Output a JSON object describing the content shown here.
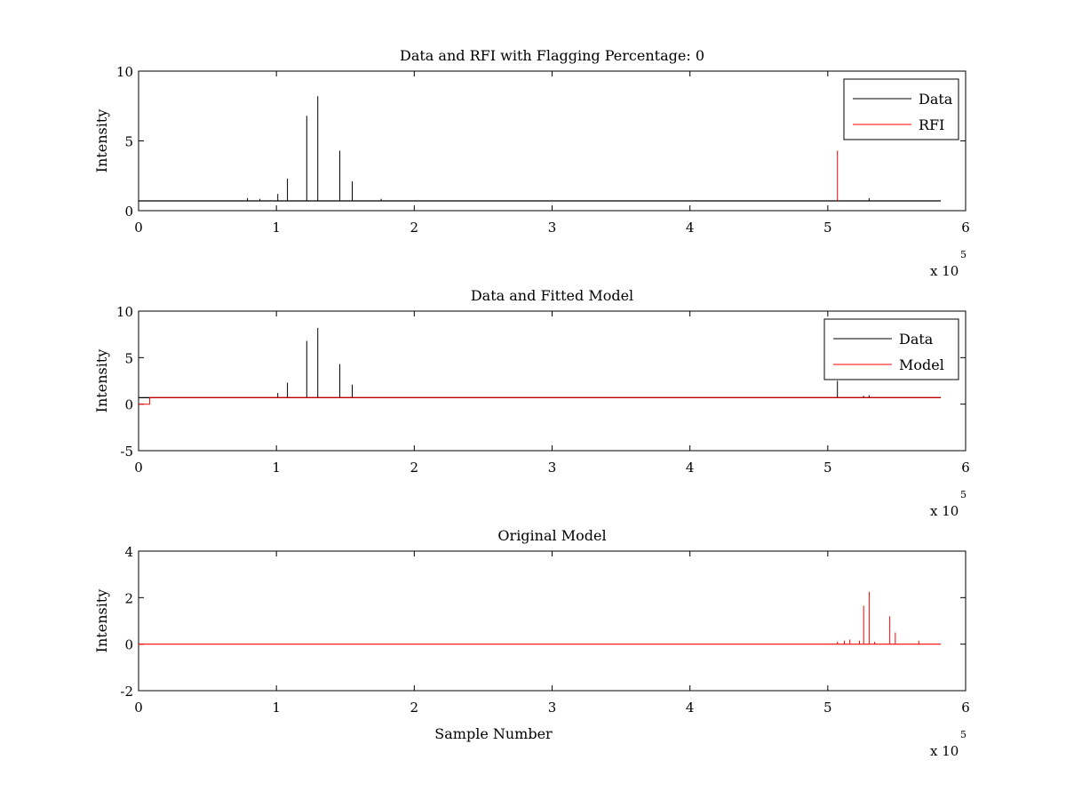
{
  "colors": {
    "data": "#000000",
    "rfi": "#ff0000",
    "model": "#ff0000",
    "frame": "#000000",
    "background": "#ffffff"
  },
  "chart_data": [
    {
      "type": "line",
      "title": "Data and RFI with Flagging Percentage: 0",
      "xlabel": "",
      "ylabel": "Intensity",
      "xlim": [
        0,
        600000
      ],
      "ylim": [
        0,
        10
      ],
      "xticks": [
        0,
        1,
        2,
        3,
        4,
        5,
        6
      ],
      "yticks": [
        0,
        5,
        10
      ],
      "x_multiplier": {
        "base": "x 10",
        "exponent": "5"
      },
      "grid": false,
      "legend": {
        "placement": "top-right",
        "entries": [
          "Data",
          "RFI"
        ]
      },
      "series": [
        {
          "name": "Data",
          "color": "#000000",
          "baseline": 0.7,
          "baseline_x": [
            0,
            582000
          ],
          "spikes": [
            {
              "x": 101000,
              "y": 1.2
            },
            {
              "x": 108000,
              "y": 2.3
            },
            {
              "x": 122000,
              "y": 6.8
            },
            {
              "x": 130000,
              "y": 8.2
            },
            {
              "x": 146000,
              "y": 4.3
            },
            {
              "x": 155000,
              "y": 2.1
            },
            {
              "x": 79000,
              "y": 0.9
            },
            {
              "x": 88000,
              "y": 0.85
            },
            {
              "x": 176000,
              "y": 0.85
            },
            {
              "x": 530000,
              "y": 0.9
            }
          ]
        },
        {
          "name": "RFI",
          "color": "#ff0000",
          "baseline": 0.7,
          "spikes": [
            {
              "x": 506000,
              "y": 0.7
            },
            {
              "x": 507000,
              "y": 4.3
            }
          ]
        }
      ]
    },
    {
      "type": "line",
      "title": "Data and Fitted Model",
      "xlabel": "",
      "ylabel": "Intensity",
      "xlim": [
        0,
        600000
      ],
      "ylim": [
        -5,
        10
      ],
      "xticks": [
        0,
        1,
        2,
        3,
        4,
        5,
        6
      ],
      "yticks": [
        -5,
        0,
        5,
        10
      ],
      "x_multiplier": {
        "base": "x 10",
        "exponent": "5"
      },
      "grid": false,
      "legend": {
        "placement": "top-right",
        "entries": [
          "Data",
          "Model"
        ]
      },
      "series": [
        {
          "name": "Data",
          "color": "#000000",
          "baseline": 0.7,
          "baseline_x": [
            0,
            582000
          ],
          "spikes": [
            {
              "x": 101000,
              "y": 1.2
            },
            {
              "x": 108000,
              "y": 2.3
            },
            {
              "x": 122000,
              "y": 6.8
            },
            {
              "x": 130000,
              "y": 8.2
            },
            {
              "x": 146000,
              "y": 4.3
            },
            {
              "x": 155000,
              "y": 2.1
            },
            {
              "x": 507000,
              "y": 2.5
            },
            {
              "x": 526000,
              "y": 0.9
            },
            {
              "x": 530000,
              "y": 0.95
            }
          ]
        },
        {
          "name": "Model",
          "color": "#ff0000",
          "points": [
            [
              0,
              0
            ],
            [
              8000,
              0
            ],
            [
              8000,
              0.7
            ],
            [
              582000,
              0.7
            ]
          ]
        }
      ]
    },
    {
      "type": "line",
      "title": "Original Model",
      "xlabel": "Sample Number",
      "ylabel": "Intensity",
      "xlim": [
        0,
        600000
      ],
      "ylim": [
        -2,
        4
      ],
      "xticks": [
        0,
        1,
        2,
        3,
        4,
        5,
        6
      ],
      "yticks": [
        -2,
        0,
        2,
        4
      ],
      "x_multiplier": {
        "base": "x 10",
        "exponent": "5"
      },
      "grid": false,
      "legend": null,
      "series": [
        {
          "name": "",
          "color": "#ff0000",
          "baseline": 0.0,
          "baseline_x": [
            0,
            582000
          ],
          "spikes": [
            {
              "x": 507000,
              "y": 0.1
            },
            {
              "x": 512000,
              "y": 0.15
            },
            {
              "x": 516000,
              "y": 0.2
            },
            {
              "x": 523000,
              "y": 0.15
            },
            {
              "x": 526000,
              "y": 1.65
            },
            {
              "x": 530000,
              "y": 2.25
            },
            {
              "x": 534000,
              "y": 0.1
            },
            {
              "x": 545000,
              "y": 1.2
            },
            {
              "x": 549000,
              "y": 0.5
            },
            {
              "x": 566000,
              "y": 0.15
            }
          ]
        }
      ]
    }
  ]
}
